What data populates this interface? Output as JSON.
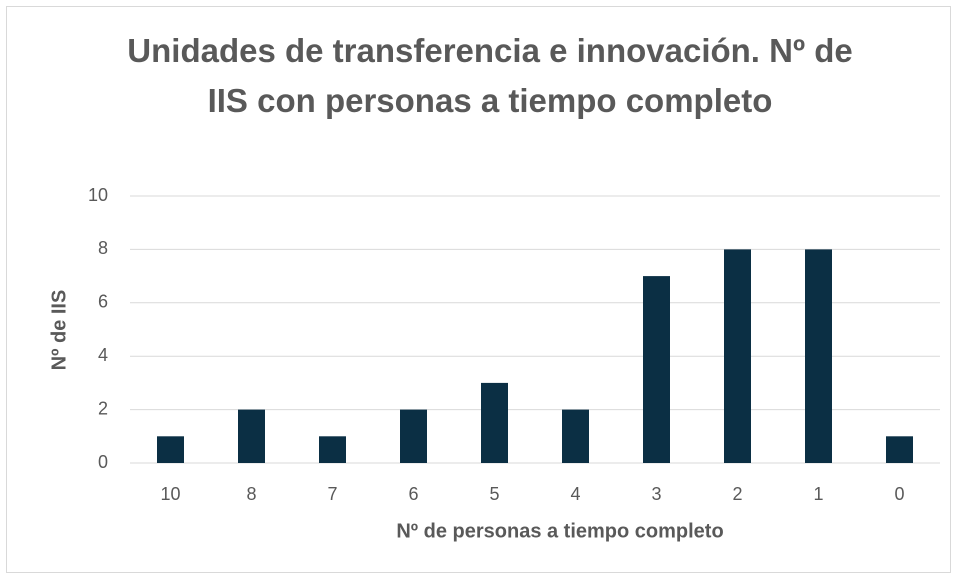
{
  "chart_data": {
    "type": "bar",
    "title": "Unidades de transferencia e innovación. Nº de IIS con personas a tiempo completo",
    "x_label": "Nº de personas a tiempo completo",
    "y_label": "Nº de IIS",
    "categories": [
      "10",
      "8",
      "7",
      "6",
      "5",
      "4",
      "3",
      "2",
      "1",
      "0"
    ],
    "values": [
      1,
      2,
      1,
      2,
      3,
      2,
      7,
      8,
      8,
      1
    ],
    "color": "#0b2f44",
    "ylim": [
      0,
      10
    ],
    "yticks": [
      0,
      2,
      4,
      6,
      8,
      10
    ],
    "grid": true
  }
}
